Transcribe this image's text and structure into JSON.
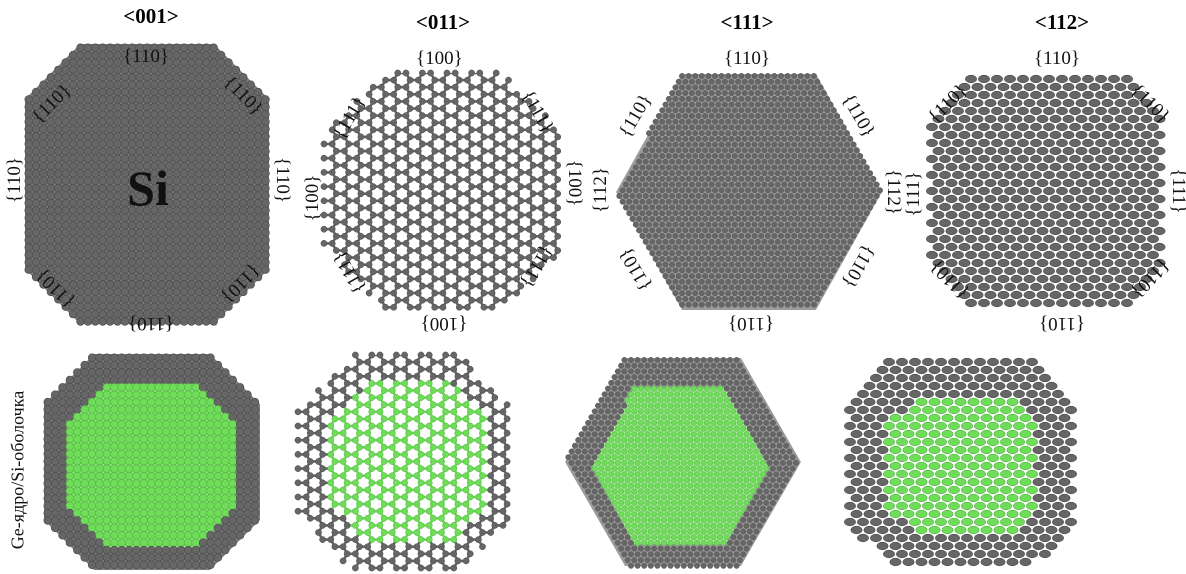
{
  "panels": [
    {
      "title": "<001>",
      "top_facet": "{110}",
      "bottom_facet": "{110}",
      "left_facet": "{110}",
      "right_facet": "{110}",
      "ul_facet": "{110}",
      "ur_facet": "{110}",
      "ll_facet": "{110}",
      "lr_facet": "{110}"
    },
    {
      "title": "<011>",
      "top_facet": "{100}",
      "bottom_facet": "{100}",
      "left_facet": "{100}",
      "right_facet": "{100}",
      "ul_facet": "{111}",
      "ur_facet": "{111}",
      "ll_facet": "{111}",
      "lr_facet": "{111}"
    },
    {
      "title": "<111>",
      "top_facet": "{110}",
      "bottom_facet": "{110}",
      "left_facet": "{112}",
      "right_facet": "{112}",
      "ul_facet": "{110}",
      "ur_facet": "{110}",
      "ll_facet": "{110}",
      "lr_facet": "{110}"
    },
    {
      "title": "<112>",
      "top_facet": "{110}",
      "bottom_facet": "{110}",
      "left_facet": "{111}",
      "right_facet": "{111}",
      "ul_facet": "{110}",
      "ur_facet": "{110}",
      "ll_facet": "{110}",
      "lr_facet": "{110}"
    }
  ],
  "core_label": "Si",
  "row2_label": "Ge-ядро/Si-оболочка",
  "colors": {
    "shell": "#666666",
    "core": "#6fdc5a",
    "atom_edge": "#4a4a4a"
  }
}
